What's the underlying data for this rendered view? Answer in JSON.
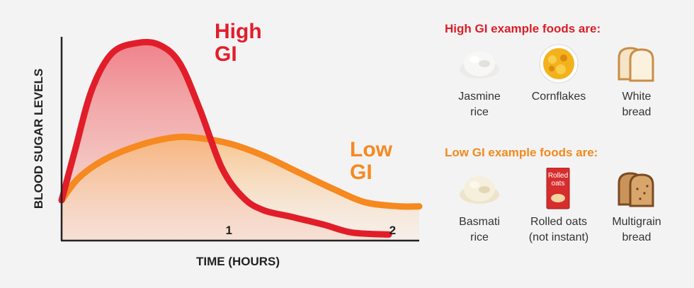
{
  "colors": {
    "high": "#e11d2a",
    "low": "#f6891f",
    "axis": "#222222",
    "high_title": "#d81f26",
    "low_title": "#f08a1d"
  },
  "chart_data": {
    "type": "line",
    "xlabel": "TIME (HOURS)",
    "ylabel": "BLOOD SUGAR LEVELS",
    "x_ticks": [
      1,
      2
    ],
    "xlim": [
      0,
      2.12
    ],
    "ylim": [
      0,
      1
    ],
    "series": [
      {
        "name_lines": [
          "High",
          "GI"
        ],
        "color": "#e11d2a",
        "x": [
          0,
          0.08,
          0.18,
          0.3,
          0.45,
          0.58,
          0.7,
          0.82,
          0.95,
          1.08,
          1.2,
          1.35,
          1.55,
          1.72,
          1.94
        ],
        "y": [
          0.2,
          0.45,
          0.75,
          0.93,
          0.98,
          0.97,
          0.88,
          0.65,
          0.36,
          0.21,
          0.15,
          0.12,
          0.08,
          0.04,
          0.03
        ]
      },
      {
        "name_lines": [
          "Low",
          "GI"
        ],
        "color": "#f6891f",
        "x": [
          0,
          0.1,
          0.25,
          0.45,
          0.65,
          0.8,
          1.0,
          1.2,
          1.4,
          1.6,
          1.8,
          2.0,
          2.12
        ],
        "y": [
          0.2,
          0.31,
          0.4,
          0.47,
          0.51,
          0.51,
          0.48,
          0.42,
          0.34,
          0.26,
          0.19,
          0.17,
          0.17
        ]
      }
    ]
  },
  "high_panel": {
    "title": "High GI example foods are:",
    "foods": [
      {
        "label": "Jasmine\nrice",
        "icon": "rice-icon"
      },
      {
        "label": "Cornflakes",
        "icon": "cornflakes-icon"
      },
      {
        "label": "White\nbread",
        "icon": "white-bread-icon"
      }
    ]
  },
  "low_panel": {
    "title": "Low GI example foods are:",
    "foods": [
      {
        "label": "Basmati\nrice",
        "icon": "basmati-rice-icon"
      },
      {
        "label": "Rolled oats\n(not instant)",
        "icon": "rolled-oats-icon",
        "box_text": [
          "Rolled",
          "oats"
        ]
      },
      {
        "label": "Multigrain\nbread",
        "icon": "multigrain-bread-icon"
      }
    ]
  }
}
